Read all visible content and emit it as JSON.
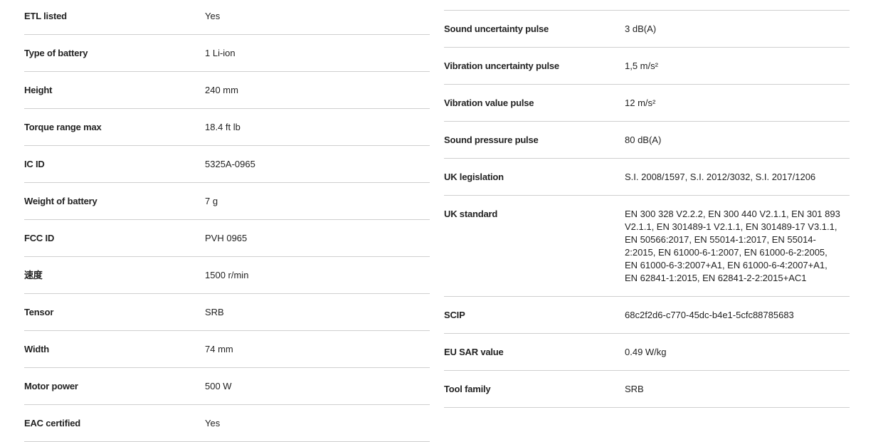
{
  "left_specs": [
    {
      "label": "ETL listed",
      "value": "Yes"
    },
    {
      "label": "Type of battery",
      "value": "1 Li-ion"
    },
    {
      "label": "Height",
      "value": "240 mm"
    },
    {
      "label": "Torque range max",
      "value": "18.4 ft lb"
    },
    {
      "label": "IC ID",
      "value": "5325A-0965"
    },
    {
      "label": "Weight of battery",
      "value": "7 g"
    },
    {
      "label": "FCC ID",
      "value": "PVH 0965"
    },
    {
      "label": "速度",
      "value": "1500 r/min"
    },
    {
      "label": "Tensor",
      "value": "SRB"
    },
    {
      "label": "Width",
      "value": "74 mm"
    },
    {
      "label": "Motor power",
      "value": "500 W"
    },
    {
      "label": "EAC certified",
      "value": "Yes"
    }
  ],
  "right_specs": [
    {
      "label": "Sound uncertainty pulse",
      "value": "3 dB(A)"
    },
    {
      "label": "Vibration uncertainty pulse",
      "value": "1,5 m/s²"
    },
    {
      "label": "Vibration value pulse",
      "value": "12 m/s²"
    },
    {
      "label": "Sound pressure pulse",
      "value": "80 dB(A)"
    },
    {
      "label": "UK legislation",
      "value": "S.I. 2008/1597, S.I. 2012/3032, S.I. 2017/1206"
    },
    {
      "label": "UK standard",
      "value": "EN 300 328 V2.2.2, EN 300 440 V2.1.1, EN 301 893 V2.1.1, EN 301489-1 V2.1.1, EN 301489-17 V3.1.1, EN 50566:2017, EN 55014-1:2017, EN 55014-2:2015, EN 61000-6-1:2007, EN 61000-6-2:2005, EN 61000-6-3:2007+A1, EN 61000-6-4:2007+A1, EN 62841-1:2015, EN 62841-2-2:2015+AC1"
    },
    {
      "label": "SCIP",
      "value": "68c2f2d6-c770-45dc-b4e1-5cfc88785683"
    },
    {
      "label": "EU SAR value",
      "value": "0.49 W/kg"
    },
    {
      "label": "Tool family",
      "value": "SRB"
    }
  ]
}
